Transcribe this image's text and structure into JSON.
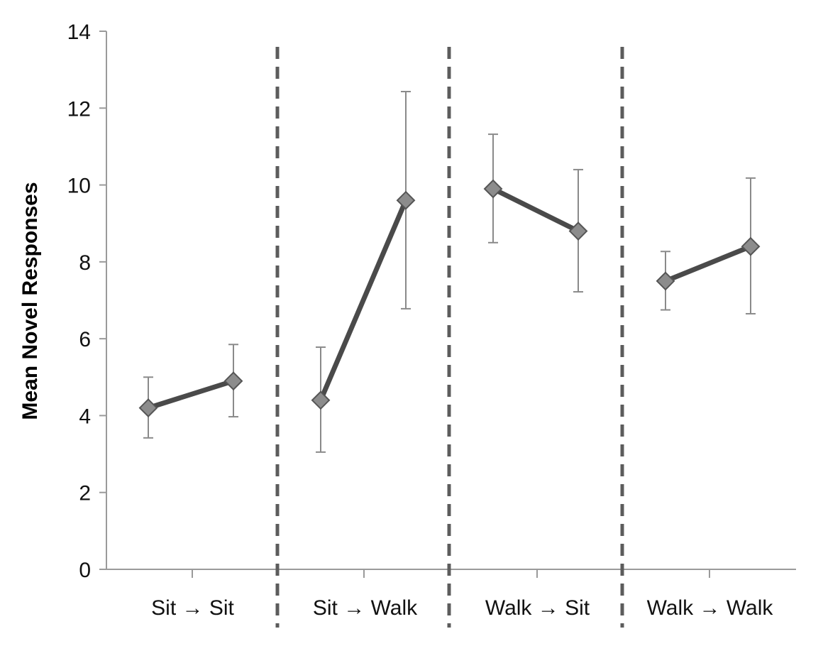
{
  "chart_data": {
    "type": "line",
    "title": "",
    "xlabel": "",
    "ylabel": "Mean Novel Responses",
    "ylim": [
      0,
      14
    ],
    "yticks": [
      0,
      2,
      4,
      6,
      8,
      10,
      12,
      14
    ],
    "grid": false,
    "legend": "none",
    "arrow": "→",
    "groups": [
      {
        "from": "Sit",
        "to": "Sit",
        "values": [
          4.2,
          4.9
        ],
        "err_low": [
          3.42,
          3.97
        ],
        "err_high": [
          5.0,
          5.85
        ]
      },
      {
        "from": "Sit",
        "to": "Walk",
        "values": [
          4.4,
          9.6
        ],
        "err_low": [
          3.05,
          6.78
        ],
        "err_high": [
          5.78,
          12.43
        ]
      },
      {
        "from": "Walk",
        "to": "Sit",
        "values": [
          9.9,
          8.8
        ],
        "err_low": [
          8.5,
          7.22
        ],
        "err_high": [
          11.32,
          10.4
        ]
      },
      {
        "from": "Walk",
        "to": "Walk",
        "values": [
          7.5,
          8.4
        ],
        "err_low": [
          6.75,
          6.65
        ],
        "err_high": [
          8.27,
          10.18
        ]
      }
    ],
    "colors": {
      "line": "#4a4a4a",
      "marker_fill": "#8c8c8c",
      "marker_stroke": "#555555",
      "error_bar": "#8a8a8a",
      "axis": "#9a9a9a",
      "divider": "#5c5c5c"
    }
  }
}
